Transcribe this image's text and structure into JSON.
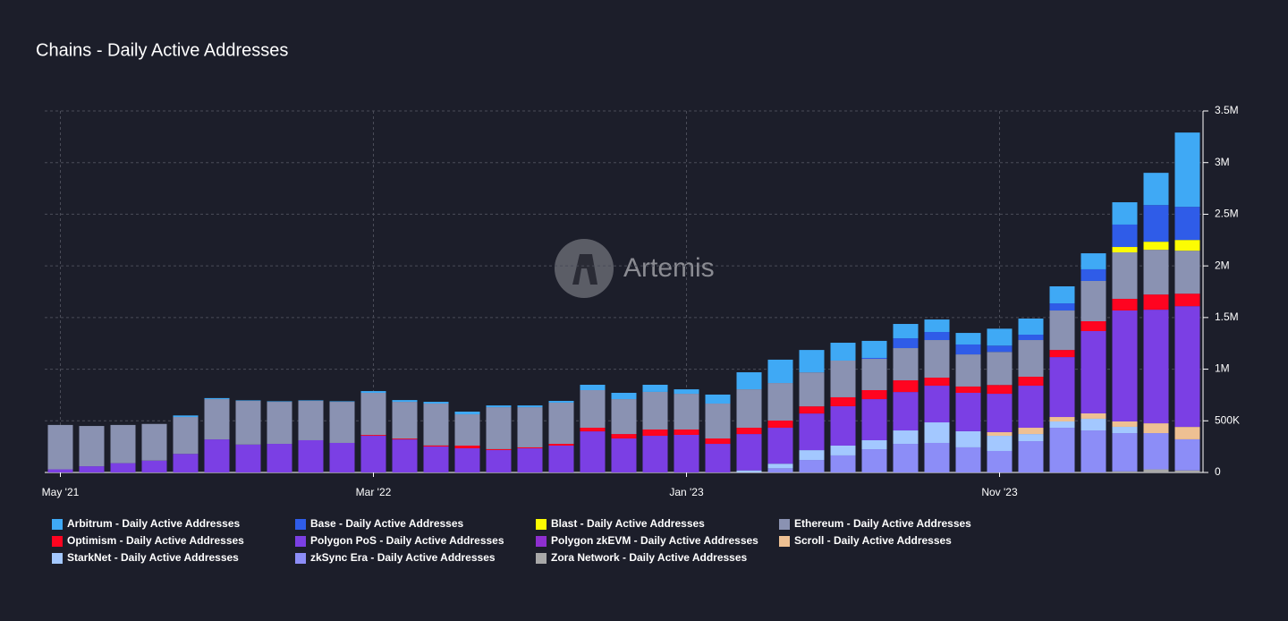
{
  "chart_data": {
    "type": "stacked_bar",
    "title": "Chains - Daily Active Addresses",
    "watermark": "Artemis",
    "categories": [
      "May '21",
      null,
      null,
      null,
      null,
      null,
      null,
      null,
      null,
      null,
      "Mar '22",
      null,
      null,
      null,
      null,
      null,
      null,
      null,
      null,
      null,
      "Jan '23",
      null,
      null,
      null,
      null,
      null,
      null,
      null,
      null,
      null,
      "Nov '23",
      null,
      null,
      null,
      null,
      null,
      null
    ],
    "ylim": [
      0,
      3500000
    ],
    "yticks": [
      0,
      {
        "value": 500000,
        "label": "500K"
      },
      {
        "value": 1000000,
        "label": "1M"
      },
      {
        "value": 1500000,
        "label": "1.5M"
      },
      {
        "value": 2000000,
        "label": "2M"
      },
      {
        "value": 2500000,
        "label": "2.5M"
      },
      {
        "value": 3000000,
        "label": "3M"
      },
      {
        "value": 3500000,
        "label": "3.5M"
      }
    ],
    "grid": true,
    "series": [
      {
        "name": "Arbitrum - Daily Active Addresses",
        "color": "#3fa9f5",
        "values": [
          0,
          0,
          0,
          0,
          15000,
          10000,
          5000,
          5000,
          5000,
          5000,
          17000,
          17000,
          17000,
          26000,
          17000,
          17000,
          17000,
          52000,
          61000,
          69000,
          43000,
          87000,
          165000,
          226000,
          217000,
          173000,
          165000,
          139000,
          121000,
          112000,
          164000,
          156000,
          165000,
          155000,
          216000,
          312000,
          719000
        ]
      },
      {
        "name": "Base - Daily Active Addresses",
        "color": "#2f5ce8",
        "values": [
          0,
          0,
          0,
          0,
          0,
          0,
          0,
          0,
          0,
          0,
          0,
          0,
          0,
          0,
          0,
          0,
          0,
          0,
          0,
          0,
          0,
          0,
          0,
          0,
          0,
          0,
          9000,
          95000,
          78000,
          96000,
          61000,
          52000,
          69000,
          113000,
          217000,
          355000,
          321000
        ]
      },
      {
        "name": "Blast - Daily Active Addresses",
        "color": "#fcfc03",
        "values": [
          0,
          0,
          0,
          0,
          0,
          0,
          0,
          0,
          0,
          0,
          0,
          0,
          0,
          0,
          0,
          0,
          0,
          0,
          0,
          0,
          0,
          0,
          0,
          0,
          0,
          0,
          0,
          0,
          0,
          0,
          0,
          0,
          0,
          0,
          52000,
          78000,
          104000
        ]
      },
      {
        "name": "Ethereum - Daily Active Addresses",
        "color": "#8a92b2",
        "values": [
          430000,
          390000,
          370000,
          355000,
          357000,
          390000,
          423000,
          407000,
          381000,
          398000,
          408000,
          356000,
          406000,
          303000,
          406000,
          389000,
          399000,
          364000,
          338000,
          364000,
          346000,
          338000,
          372000,
          364000,
          329000,
          355000,
          303000,
          312000,
          364000,
          311000,
          320000,
          355000,
          382000,
          390000,
          450000,
          433000,
          416000
        ]
      },
      {
        "name": "Optimism - Daily Active Addresses",
        "color": "#ff0420",
        "values": [
          0,
          0,
          0,
          0,
          0,
          0,
          0,
          0,
          0,
          0,
          8000,
          8000,
          10000,
          26000,
          9000,
          9000,
          17000,
          35000,
          43000,
          61000,
          52000,
          52000,
          61000,
          69000,
          69000,
          87000,
          87000,
          113000,
          78000,
          61000,
          85000,
          87000,
          69000,
          95000,
          113000,
          147000,
          121000
        ]
      },
      {
        "name": "Polygon PoS - Daily Active Addresses",
        "color": "#7b3fe4",
        "values": [
          30000,
          60000,
          90000,
          115000,
          180000,
          320000,
          270000,
          277000,
          312000,
          286000,
          355000,
          320000,
          251000,
          234000,
          217000,
          234000,
          260000,
          398000,
          329000,
          355000,
          364000,
          277000,
          352000,
          348000,
          355000,
          381000,
          398000,
          372000,
          355000,
          372000,
          372000,
          407000,
          580000,
          797000,
          1074000,
          1100000,
          1169000
        ]
      },
      {
        "name": "Polygon zkEVM - Daily Active Addresses",
        "color": "#8e2fd0",
        "values": [
          0,
          0,
          0,
          0,
          0,
          0,
          0,
          0,
          0,
          0,
          0,
          0,
          0,
          0,
          0,
          0,
          0,
          0,
          0,
          0,
          0,
          0,
          0,
          0,
          0,
          0,
          0,
          0,
          0,
          0,
          0,
          0,
          0,
          0,
          0,
          0,
          0
        ]
      },
      {
        "name": "Scroll - Daily Active Addresses",
        "color": "#eec093",
        "values": [
          0,
          0,
          0,
          0,
          0,
          0,
          0,
          0,
          0,
          0,
          0,
          0,
          0,
          0,
          0,
          0,
          0,
          0,
          0,
          0,
          0,
          0,
          0,
          0,
          0,
          0,
          0,
          0,
          0,
          0,
          35000,
          61000,
          43000,
          52000,
          52000,
          95000,
          120000
        ]
      },
      {
        "name": "StarkNet - Daily Active Addresses",
        "color": "#a3c8ff",
        "values": [
          0,
          0,
          0,
          0,
          0,
          0,
          0,
          0,
          0,
          0,
          0,
          0,
          0,
          0,
          0,
          0,
          0,
          0,
          0,
          0,
          0,
          0,
          20000,
          45000,
          95000,
          95000,
          87000,
          130000,
          199000,
          156000,
          147000,
          69000,
          61000,
          113000,
          61000,
          0,
          0
        ]
      },
      {
        "name": "zkSync Era - Daily Active Addresses",
        "color": "#8c8df7",
        "values": [
          0,
          0,
          0,
          0,
          0,
          0,
          0,
          0,
          0,
          0,
          0,
          0,
          0,
          0,
          0,
          0,
          0,
          0,
          0,
          0,
          0,
          0,
          0,
          40000,
          121000,
          165000,
          225000,
          277000,
          286000,
          243000,
          208000,
          303000,
          433000,
          407000,
          371000,
          351000,
          301000
        ]
      },
      {
        "name": "Zora Network - Daily Active Addresses",
        "color": "#a8a8a8",
        "values": [
          0,
          0,
          0,
          0,
          0,
          0,
          0,
          0,
          0,
          0,
          0,
          0,
          0,
          0,
          0,
          0,
          0,
          0,
          0,
          0,
          0,
          0,
          0,
          0,
          0,
          0,
          0,
          0,
          0,
          0,
          0,
          0,
          0,
          0,
          10000,
          30000,
          20000
        ]
      }
    ]
  }
}
